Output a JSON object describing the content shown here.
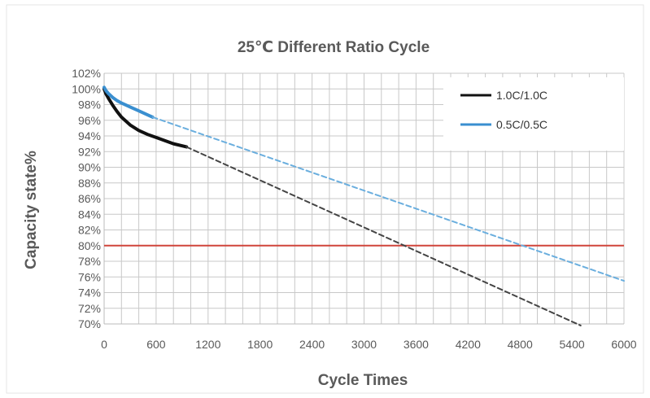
{
  "chart_data": {
    "type": "line",
    "title": "25℃ Different Ratio Cycle",
    "xlabel": "Cycle Times",
    "ylabel": "Capacity state%",
    "xlim": [
      0,
      6000
    ],
    "ylim": [
      70,
      102
    ],
    "x_ticks": [
      0,
      600,
      1200,
      1800,
      2400,
      3000,
      3600,
      4200,
      4800,
      5400,
      6000
    ],
    "x_tick_labels": [
      "0",
      "600",
      "1200",
      "1800",
      "2400",
      "3000",
      "3600",
      "4200",
      "4800",
      "5400",
      "6000"
    ],
    "y_ticks": [
      70,
      72,
      74,
      76,
      78,
      80,
      82,
      84,
      86,
      88,
      90,
      92,
      94,
      96,
      98,
      100,
      102
    ],
    "y_tick_labels": [
      "70%",
      "72%",
      "74%",
      "76%",
      "78%",
      "80%",
      "82%",
      "84%",
      "86%",
      "88%",
      "90%",
      "92%",
      "94%",
      "96%",
      "98%",
      "100%",
      "102%"
    ],
    "grid": true,
    "legend_position": "top-right",
    "reference_line": {
      "y": 80,
      "color": "#d0453a"
    },
    "series": [
      {
        "name": "1.0C/1.0C",
        "color": "#111111",
        "style": "solid",
        "x": [
          0,
          20,
          50,
          100,
          150,
          200,
          300,
          400,
          500,
          600,
          700,
          800,
          950
        ],
        "y": [
          100,
          99.4,
          98.8,
          97.9,
          97.1,
          96.4,
          95.4,
          94.7,
          94.2,
          93.8,
          93.4,
          93.0,
          92.6
        ]
      },
      {
        "name": "1.0C/1.0C extrapolation",
        "color": "#444444",
        "style": "dashed",
        "x": [
          950,
          5500
        ],
        "y": [
          92.6,
          69.8
        ]
      },
      {
        "name": "0.5C/0.5C",
        "color": "#3a8fd0",
        "style": "solid",
        "x": [
          0,
          20,
          50,
          100,
          150,
          200,
          300,
          400,
          500,
          560
        ],
        "y": [
          100.2,
          99.8,
          99.4,
          98.9,
          98.5,
          98.2,
          97.7,
          97.2,
          96.7,
          96.4
        ]
      },
      {
        "name": "0.5C/0.5C extrapolation",
        "color": "#6aaede",
        "style": "dashed",
        "x": [
          560,
          6000
        ],
        "y": [
          96.4,
          75.5
        ]
      }
    ]
  },
  "legend": {
    "items": [
      {
        "label": "1.0C/1.0C",
        "color": "#111111"
      },
      {
        "label": "0.5C/0.5C",
        "color": "#3a8fd0"
      }
    ]
  }
}
